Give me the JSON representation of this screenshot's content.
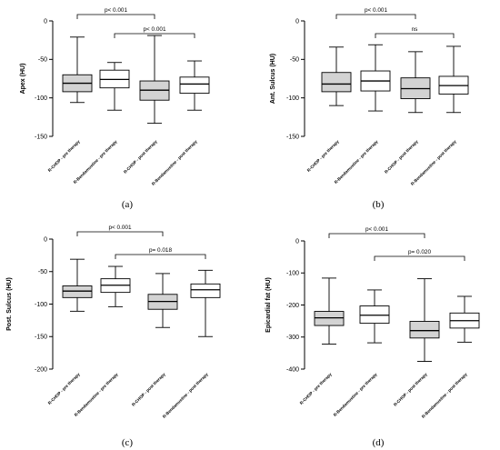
{
  "figure": {
    "colors": {
      "box_fill": "#d3d3d3",
      "stroke": "#000000",
      "background": "#ffffff"
    }
  },
  "chart_data": [
    {
      "type": "box",
      "caption": "(a)",
      "ylabel": "Apex (HU)",
      "ylim": [
        -150,
        0
      ],
      "yticks": [
        0,
        -50,
        -100,
        -150
      ],
      "ytick_labels": [
        "0",
        "-50",
        "-100",
        "-150"
      ],
      "categories": [
        "R-CHOP - pre therapy",
        "R-Bendamustine - pre therapy",
        "R-CHOP - post therapy",
        "R-Bendamustine - post therapy"
      ],
      "boxes": [
        {
          "min": -106,
          "q1": -92,
          "median": -81,
          "q3": -70,
          "max": -21
        },
        {
          "min": -116,
          "q1": -87,
          "median": -76,
          "q3": -64,
          "max": -54
        },
        {
          "min": -133,
          "q1": -103,
          "median": -90,
          "q3": -78,
          "max": -19
        },
        {
          "min": -116,
          "q1": -94,
          "median": -82,
          "q3": -73,
          "max": -52
        }
      ],
      "annotations": [
        {
          "from": 0,
          "to": 2,
          "text": "p< 0.001"
        },
        {
          "from": 1,
          "to": 3,
          "text": "p< 0.001"
        }
      ]
    },
    {
      "type": "box",
      "caption": "(b)",
      "ylabel": "Ant. Sulcus (HU)",
      "ylim": [
        -150,
        0
      ],
      "yticks": [
        0,
        -50,
        -100,
        -150
      ],
      "ytick_labels": [
        "0",
        "-50",
        "-100",
        "-150"
      ],
      "categories": [
        "R-CHOP - pre therapy",
        "R-Bendamustine - pre therapy",
        "R-CHOP - post therapy",
        "R-Bendamustine - post therapy"
      ],
      "boxes": [
        {
          "min": -110,
          "q1": -92,
          "median": -82,
          "q3": -67,
          "max": -34
        },
        {
          "min": -117,
          "q1": -91,
          "median": -78,
          "q3": -65,
          "max": -31
        },
        {
          "min": -119,
          "q1": -101,
          "median": -88,
          "q3": -74,
          "max": -40
        },
        {
          "min": -119,
          "q1": -95,
          "median": -84,
          "q3": -72,
          "max": -33
        }
      ],
      "annotations": [
        {
          "from": 0,
          "to": 2,
          "text": "p< 0.001"
        },
        {
          "from": 1,
          "to": 3,
          "text": "ns"
        }
      ]
    },
    {
      "type": "box",
      "caption": "(c)",
      "ylabel": "Post. Sulcus (HU)",
      "ylim": [
        -200,
        0
      ],
      "yticks": [
        0,
        -50,
        -100,
        -150,
        -200
      ],
      "ytick_labels": [
        "0",
        "-50",
        "-100",
        "-150",
        "-200"
      ],
      "categories": [
        "R-CHOP - pre therapy",
        "R-Bendamustine - pre therapy",
        "R-CHOP - post therapy",
        "R-Bendamustine - post therapy"
      ],
      "boxes": [
        {
          "min": -111,
          "q1": -90,
          "median": -80,
          "q3": -72,
          "max": -31
        },
        {
          "min": -104,
          "q1": -82,
          "median": -71,
          "q3": -61,
          "max": -42
        },
        {
          "min": -136,
          "q1": -108,
          "median": -96,
          "q3": -85,
          "max": -53
        },
        {
          "min": -150,
          "q1": -90,
          "median": -78,
          "q3": -69,
          "max": -48
        }
      ],
      "annotations": [
        {
          "from": 0,
          "to": 2,
          "text": "p< 0.001"
        },
        {
          "from": 1,
          "to": 3,
          "text": "p= 0.018"
        }
      ]
    },
    {
      "type": "box",
      "caption": "(d)",
      "ylabel": "Epicardial fat (HU)",
      "ylim": [
        -400,
        0
      ],
      "yticks": [
        0,
        -100,
        -200,
        -300,
        -400
      ],
      "ytick_labels": [
        "0",
        "-100",
        "-200",
        "-300",
        "-400"
      ],
      "categories": [
        "R-CHOP - pre therapy",
        "R-Bendamustine - pre therapy",
        "R-CHOP - post therapy",
        "R-Bendamustine - post therapy"
      ],
      "boxes": [
        {
          "min": -322,
          "q1": -264,
          "median": -240,
          "q3": -220,
          "max": -116
        },
        {
          "min": -318,
          "q1": -257,
          "median": -232,
          "q3": -203,
          "max": -153
        },
        {
          "min": -376,
          "q1": -303,
          "median": -280,
          "q3": -251,
          "max": -118
        },
        {
          "min": -316,
          "q1": -272,
          "median": -249,
          "q3": -225,
          "max": -173
        }
      ],
      "annotations": [
        {
          "from": 0,
          "to": 2,
          "text": "p< 0.001"
        },
        {
          "from": 1,
          "to": 3,
          "text": "p= 0.020"
        }
      ]
    }
  ]
}
